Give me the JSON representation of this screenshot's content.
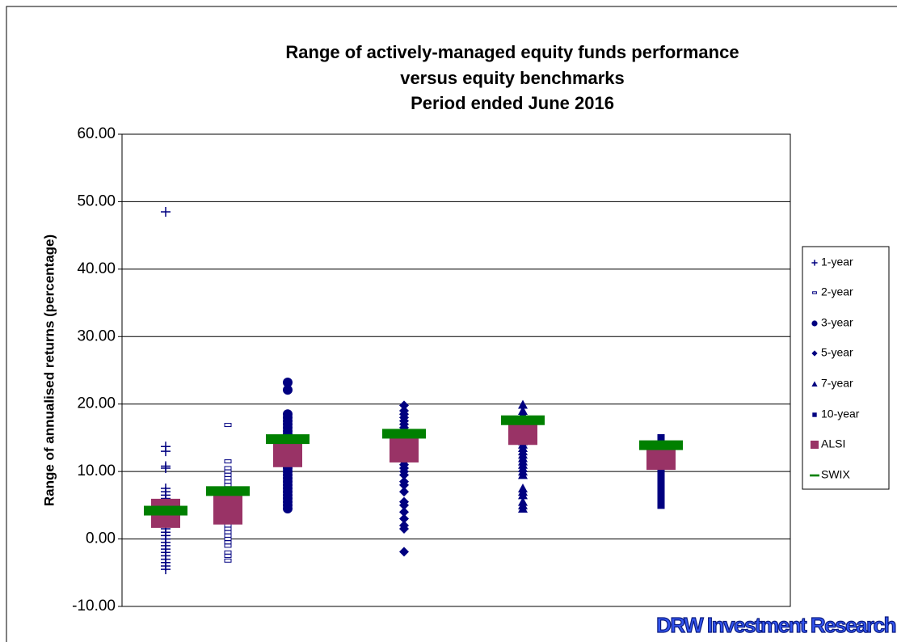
{
  "chart_data": {
    "type": "scatter",
    "title": [
      "Range of actively-managed equity funds performance",
      "versus equity benchmarks",
      "Period ended June 2016"
    ],
    "y_label": "Range of annualised returns (percentage)",
    "watermark": "DRW Investment Research",
    "ylim": [
      -10,
      60
    ],
    "yticks": [
      {
        "value": -10,
        "label": "-10.00"
      },
      {
        "value": 0,
        "label": "0.00"
      },
      {
        "value": 10,
        "label": "10.00"
      },
      {
        "value": 20,
        "label": "20.00"
      },
      {
        "value": 30,
        "label": "30.00"
      },
      {
        "value": 40,
        "label": "40.00"
      },
      {
        "value": 50,
        "label": "50.00"
      },
      {
        "value": 60,
        "label": "60.00"
      }
    ],
    "grid": true,
    "legend": "right",
    "series": [
      {
        "name": "1-year",
        "color": "#000080",
        "marker": "plus",
        "values": [
          48.5,
          13.7,
          13,
          10.8,
          10.5,
          7.5,
          7,
          6.5,
          6,
          5.5,
          5,
          4.5,
          4,
          3.5,
          3,
          2.5,
          2,
          1.5,
          1,
          0.5,
          0,
          -0.5,
          -1,
          -1.5,
          -2,
          -2.5,
          -3,
          -3.5,
          -4,
          -4.5
        ]
      },
      {
        "name": "2-year",
        "color": "#000080",
        "marker": "dash",
        "values": [
          16.9,
          11.5,
          10.5,
          10,
          9.5,
          9,
          8.5,
          8,
          7.5,
          7,
          6.5,
          6,
          5.5,
          5,
          4.5,
          4,
          3.5,
          3,
          2.5,
          2,
          1.5,
          1,
          0.5,
          0,
          -0.5,
          -1,
          -2,
          -2.5,
          -3.2
        ]
      },
      {
        "name": "3-year",
        "color": "#000080",
        "marker": "circle",
        "values": [
          23.2,
          22.1,
          18.5,
          18,
          17.5,
          17,
          16.5,
          16,
          15.5,
          15,
          14.5,
          14,
          13.5,
          13,
          12.5,
          12,
          11.5,
          11,
          10.5,
          10,
          9.5,
          9,
          8.5,
          8,
          7.5,
          7,
          6.5,
          6,
          5.5,
          5,
          4.5
        ]
      },
      {
        "name": "5-year",
        "color": "#000080",
        "marker": "diamond",
        "values": [
          19.8,
          19,
          18.5,
          18,
          17.5,
          17,
          16.5,
          16,
          15.5,
          15,
          14.5,
          14,
          13.5,
          13,
          12.5,
          12,
          11.5,
          11,
          10.5,
          10,
          9.5,
          8.5,
          8,
          7,
          5.5,
          5,
          4,
          3,
          2,
          1.5,
          -1.9
        ]
      },
      {
        "name": "7-year",
        "color": "#000080",
        "marker": "triangle",
        "values": [
          19.9,
          19,
          18.5,
          18,
          17.5,
          17,
          16.5,
          16,
          15.5,
          15,
          14.5,
          14,
          13.5,
          13,
          12.5,
          12,
          11.5,
          11,
          10.5,
          10,
          9.5,
          7.5,
          7,
          6.5,
          5.5,
          5,
          4.5
        ]
      },
      {
        "name": "10-year",
        "color": "#000080",
        "marker": "square",
        "values": [
          15,
          14.5,
          14,
          13.5,
          13,
          12.5,
          12,
          11.5,
          11,
          10.5,
          10,
          9,
          8,
          7,
          6,
          5.5,
          5
        ]
      },
      {
        "name": "ALSI",
        "color": "#993366",
        "marker": "bigsquare",
        "values": [
          3.8,
          4.3,
          12.8,
          13.5,
          16.1,
          12.4
        ]
      },
      {
        "name": "SWIX",
        "color": "#008000",
        "marker": "bar",
        "values": [
          4.2,
          7.1,
          14.8,
          15.6,
          17.6,
          13.9
        ]
      }
    ]
  }
}
